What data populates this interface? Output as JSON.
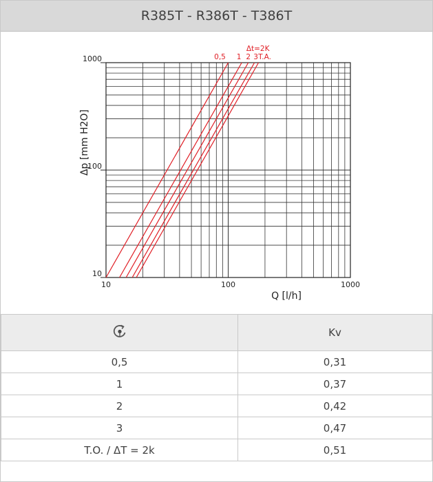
{
  "header": {
    "title": "R385T - R386T - T386T"
  },
  "table": {
    "col_icon": "setting-dial-icon",
    "col_kv_label": "Kv",
    "rows": [
      {
        "setting": "0,5",
        "kv": "0,31"
      },
      {
        "setting": "1",
        "kv": "0,37"
      },
      {
        "setting": "2",
        "kv": "0,42"
      },
      {
        "setting": "3",
        "kv": "0,47"
      },
      {
        "setting": "T.O. / ΔT = 2k",
        "kv": "0,51"
      }
    ]
  },
  "chart_data": {
    "type": "line",
    "xlabel": "Q [l/h]",
    "ylabel": "Δp [mm H2O]",
    "xscale": "log",
    "yscale": "log",
    "xlim": [
      10,
      1000
    ],
    "ylim": [
      10,
      1000
    ],
    "x_ticks": [
      "10",
      "100",
      "1000"
    ],
    "y_ticks": [
      "10",
      "100",
      "1000"
    ],
    "grid": true,
    "line_color": "#e01e25",
    "annotation": "Δt=2K",
    "series": [
      {
        "name": "0,5",
        "x": [
          10,
          100
        ],
        "y": [
          10,
          1000
        ]
      },
      {
        "name": "1",
        "x": [
          12.9,
          129
        ],
        "y": [
          10,
          1000
        ]
      },
      {
        "name": "2",
        "x": [
          14.6,
          146
        ],
        "y": [
          10,
          1000
        ]
      },
      {
        "name": "3",
        "x": [
          16.4,
          164
        ],
        "y": [
          10,
          1000
        ]
      },
      {
        "name": "T.A.",
        "x": [
          17.7,
          177
        ],
        "y": [
          10,
          1000
        ]
      }
    ]
  }
}
